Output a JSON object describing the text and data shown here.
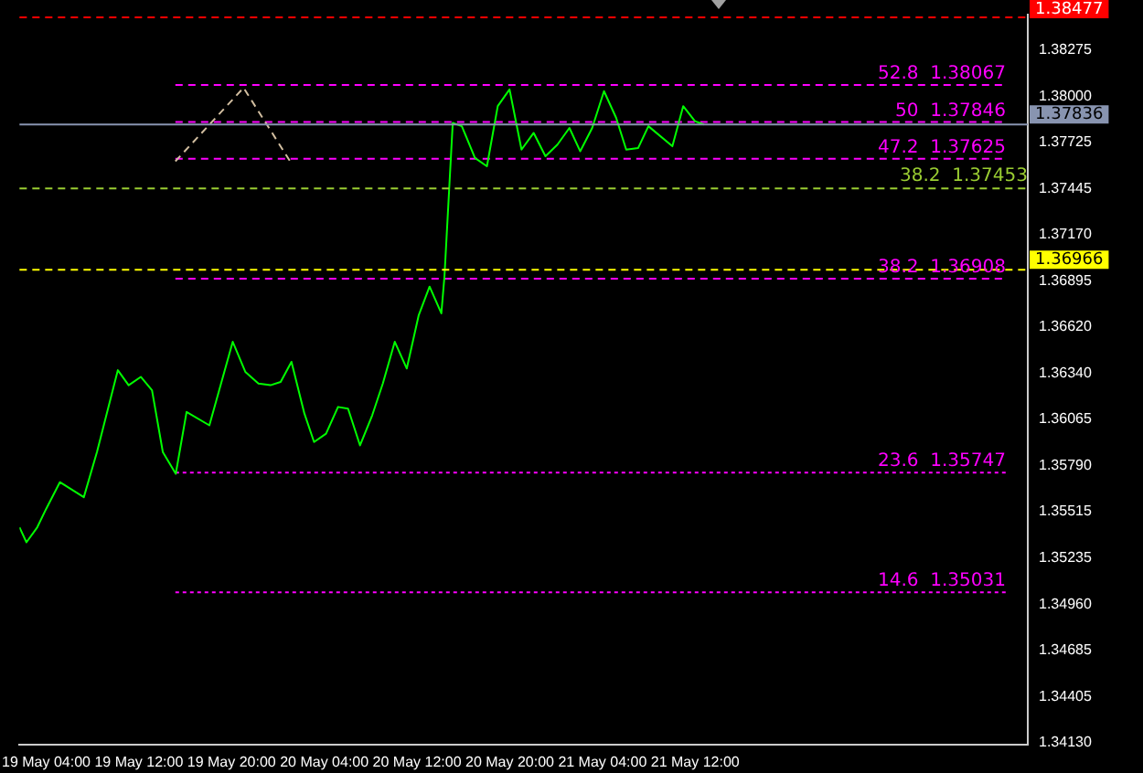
{
  "chart_data": {
    "type": "line",
    "legend": false,
    "grid": false,
    "marker": "none",
    "line_style": "solid",
    "xlim": [
      "--05-19T01:42",
      "--05-22T16:42"
    ],
    "ylim": [
      1.3412,
      1.3849
    ],
    "xticks": [
      {
        "value": "--05-19T04:00",
        "label": "19 May 04:00"
      },
      {
        "value": "--05-19T12:00",
        "label": "19 May 12:00"
      },
      {
        "value": "--05-19T20:00",
        "label": "19 May 20:00"
      },
      {
        "value": "--05-20T04:00",
        "label": "20 May 04:00"
      },
      {
        "value": "--05-20T12:00",
        "label": "20 May 12:00"
      },
      {
        "value": "--05-20T20:00",
        "label": "20 May 20:00"
      },
      {
        "value": "--05-21T04:00",
        "label": "21 May 04:00"
      },
      {
        "value": "--05-21T12:00",
        "label": "21 May 12:00"
      }
    ],
    "yticks": [
      {
        "value": 1.3413,
        "label": "1.34130"
      },
      1.34405,
      1.34685,
      {
        "value": 1.3496,
        "label": "1.34960"
      },
      1.35235,
      1.35515,
      {
        "value": 1.3579,
        "label": "1.35790"
      },
      1.36065,
      {
        "value": 1.3634,
        "label": "1.36340"
      },
      {
        "value": 1.3662,
        "label": "1.36620"
      },
      1.36895,
      {
        "value": 1.3717,
        "label": "1.37170"
      },
      1.37445,
      1.37725,
      {
        "value": 1.38,
        "label": "1.38000"
      },
      1.38275
    ],
    "series": [
      {
        "color": "#00ff00",
        "x": [
          "--05-19T01:42",
          "--05-19T02:18",
          "--05-19T03:14",
          "--05-19T04:00",
          "--05-19T05:11",
          "--05-19T07:15",
          "--05-19T08:23",
          "--05-19T10:11",
          "--05-19T11:07",
          "--05-19T12:10",
          "--05-19T13:08",
          "--05-19T14:04",
          "--05-19T15:11",
          "--05-19T16:07",
          "--05-19T18:05",
          "--05-19T20:06",
          "--05-19T21:11",
          "--05-19T22:19",
          "--05-19T23:21",
          "--05-20T00:14",
          "--05-20T01:10",
          "--05-20T02:17",
          "--05-20T03:07",
          "--05-20T04:09",
          "--05-20T05:11",
          "--05-20T06:03",
          "--05-20T07:05",
          "--05-20T08:08",
          "--05-20T09:03",
          "--05-20T10:05",
          "--05-20T11:07",
          "--05-20T12:09",
          "--05-20T13:05",
          "--05-20T14:06",
          "--05-20T14:22",
          "--05-20T15:05",
          "--05-20T15:52",
          "--05-20T17:00",
          "--05-20T18:02",
          "--05-20T18:58",
          "--05-20T19:59",
          "--05-20T21:01",
          "--05-20T22:04",
          "--05-20T23:05",
          "--05-21T00:07",
          "--05-21T01:09",
          "--05-21T02:05",
          "--05-21T03:07",
          "--05-21T04:08",
          "--05-21T05:11",
          "--05-21T06:03",
          "--05-21T07:05",
          "--05-21T07:58",
          "--05-21T10:02",
          "--05-21T10:58",
          "--05-21T11:59",
          "--05-21T12:46"
        ],
        "values": [
          1.3542,
          1.3533,
          1.3542,
          1.3553,
          1.3569,
          1.356,
          1.3587,
          1.3636,
          1.3627,
          1.3632,
          1.3624,
          1.3587,
          1.3574,
          1.3611,
          1.3603,
          1.3653,
          1.3635,
          1.3628,
          1.3627,
          1.3629,
          1.3641,
          1.361,
          1.3593,
          1.3598,
          1.3614,
          1.3613,
          1.3591,
          1.3609,
          1.3628,
          1.3653,
          1.3637,
          1.3669,
          1.3686,
          1.367,
          1.3692,
          1.3784,
          1.3782,
          1.3763,
          1.3758,
          1.3794,
          1.3804,
          1.3768,
          1.3778,
          1.3764,
          1.3771,
          1.3781,
          1.3767,
          1.3781,
          1.3803,
          1.3787,
          1.3768,
          1.3769,
          1.3782,
          1.377,
          1.3794,
          1.3785,
          1.3783
        ]
      },
      {
        "color": "#d2bea0",
        "line_style": "dashed",
        "x": [
          "--05-19T15:09",
          "--05-19T21:02",
          "--05-20T01:03"
        ],
        "values": [
          1.3761,
          1.3805,
          1.3761
        ]
      },
      {
        "color": "#ff00ff",
        "line_style": "dashed",
        "x": [
          "--05-19T15:09",
          "--05-22T14:48"
        ],
        "values": [
          1.38067,
          1.38067
        ]
      },
      {
        "color": "#ff00ff",
        "line_style": "dashed",
        "x": [
          "--05-19T15:09",
          "--05-22T14:48"
        ],
        "values": [
          1.37846,
          1.37846
        ]
      },
      {
        "color": "#ff00ff",
        "line_style": "dashed",
        "x": [
          "--05-19T15:09",
          "--05-22T14:48"
        ],
        "values": [
          1.37625,
          1.37625
        ]
      },
      {
        "color": "#ff00ff",
        "line_style": "dashed",
        "x": [
          "--05-19T15:09",
          "--05-22T14:48"
        ],
        "values": [
          1.36908,
          1.36908
        ]
      },
      {
        "color": "#ff00ff",
        "line_style": "dotted",
        "x": [
          "--05-19T15:09",
          "--05-22T14:48"
        ],
        "values": [
          1.35747,
          1.35747
        ]
      },
      {
        "color": "#ff00ff",
        "line_style": "dotted",
        "x": [
          "--05-19T15:09",
          "--05-22T14:48"
        ],
        "values": [
          1.35031,
          1.35031
        ]
      }
    ],
    "ref_lines": [
      {
        "axis": "y",
        "value": 1.38477,
        "label": "1.38477",
        "color": "#ff0000",
        "line_style": "dashed"
      },
      {
        "axis": "y",
        "value": 1.37836,
        "label": "1.37836",
        "color": "#8894b0",
        "line_style": "solid"
      },
      {
        "axis": "y",
        "value": 1.37453,
        "color": "#9acd32",
        "line_style": "dashed"
      },
      {
        "axis": "y",
        "value": 1.36966,
        "label": "1.36966",
        "color": "#ffff00",
        "line_style": "dashed"
      }
    ],
    "annotations": [
      {
        "text": "52.8  1.38067",
        "x": "--05-22T14:48",
        "y": 1.38067
      },
      {
        "text": "50  1.37846",
        "x": "--05-22T14:48",
        "y": 1.37846
      },
      {
        "text": "47.2  1.37625",
        "x": "--05-22T14:48",
        "y": 1.37625
      },
      {
        "text": "38.2  1.37453",
        "x": "--05-22T16:42",
        "y": 1.37453
      },
      {
        "text": "38.2  1.36908",
        "x": "--05-22T14:48",
        "y": 1.36908
      },
      {
        "text": "23.6  1.35747",
        "x": "--05-22T14:48",
        "y": 1.35747
      },
      {
        "text": "14.6  1.35031",
        "x": "--05-22T14:48",
        "y": 1.35031
      }
    ]
  }
}
